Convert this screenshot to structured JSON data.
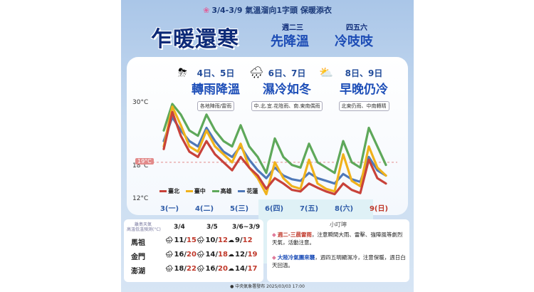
{
  "header": {
    "topline": "3/4-3/9 氣溫溜向1字頭 保暖添衣",
    "title": "乍暖還寒",
    "sub1_small": "週二三",
    "sub1": "先降溫",
    "sub2_small": "四五六",
    "sub2": "冷吱吱"
  },
  "phases": [
    {
      "date": "4日、5日",
      "phrase": "轉雨降溫",
      "tag": "各地陣雨/雷雨",
      "icon": "thunderstorm-icon"
    },
    {
      "date": "6日、7日",
      "phrase": "濕冷如冬",
      "tag": "中.北.宜.花陰雨、南.東南偶雨",
      "icon": "rain-cloud-icon"
    },
    {
      "date": "8日、9日",
      "phrase": "早晚仍冷",
      "tag": "北東仍雨、中南轉晴",
      "icon": "partly-sunny-icon"
    }
  ],
  "chart_data": {
    "type": "line",
    "y_ticks": [
      "30°C",
      "18°C",
      "12°C"
    ],
    "ylim": [
      12,
      30
    ],
    "reference_line": {
      "value": 19,
      "label": "19°C"
    },
    "categories": [
      "3(一)",
      "4(二)",
      "5(三)",
      "6(四)",
      "7(五)",
      "8(六)",
      "9(日)"
    ],
    "x": [
      3,
      3.25,
      3.5,
      3.75,
      4,
      4.25,
      4.5,
      4.75,
      5,
      5.25,
      5.5,
      5.75,
      6,
      6.25,
      6.5,
      6.75,
      7,
      7.25,
      7.5,
      7.75,
      8,
      8.25,
      8.5,
      8.75,
      9,
      9.25,
      9.5
    ],
    "series": [
      {
        "name": "臺北",
        "color": "#c8423a",
        "values": [
          21.5,
          28.5,
          24,
          21,
          20,
          23,
          20.5,
          19,
          17.5,
          20,
          18,
          16.5,
          14,
          16,
          15,
          13.8,
          13.5,
          15,
          14.2,
          13.5,
          13,
          15,
          13.8,
          13.2,
          19.5,
          16,
          15
        ]
      },
      {
        "name": "臺中",
        "color": "#f0b21c",
        "values": [
          22,
          29.5,
          26,
          22,
          21,
          25,
          22,
          20.5,
          19,
          22.5,
          18,
          16,
          13,
          19,
          16,
          14.5,
          14,
          19.5,
          15,
          14,
          13.5,
          20.5,
          15.5,
          14.5,
          22,
          18,
          16.5
        ]
      },
      {
        "name": "高雄",
        "color": "#5ea85a",
        "values": [
          25,
          30,
          28,
          25,
          24,
          28,
          25,
          23,
          22,
          26,
          22,
          20,
          17,
          23.5,
          20,
          18.5,
          18,
          22.5,
          19,
          18,
          17,
          23,
          19,
          18,
          25.5,
          22,
          18.5
        ]
      },
      {
        "name": "花蓮",
        "color": "#4f78b8",
        "values": [
          23,
          27.5,
          25,
          23,
          22,
          25.5,
          23,
          21,
          20,
          22,
          19.5,
          17.5,
          16,
          18,
          16.5,
          15.8,
          15.5,
          17,
          16,
          15.5,
          15,
          16.8,
          15.8,
          15.3,
          20,
          17.5,
          16.5
        ]
      }
    ]
  },
  "islands": {
    "header_line1": "離島天氣",
    "header_line2": "高溫低溫預測(°C)",
    "columns": [
      "3/4",
      "3/5",
      "3/6~3/9"
    ],
    "rows": [
      {
        "name": "馬祖",
        "cells": [
          {
            "low": "11",
            "high": "15"
          },
          {
            "low": "10",
            "high": "12"
          },
          {
            "low": "9",
            "high": "12"
          }
        ]
      },
      {
        "name": "金門",
        "cells": [
          {
            "low": "16",
            "high": "20"
          },
          {
            "low": "14",
            "high": "18"
          },
          {
            "low": "12",
            "high": "19"
          }
        ]
      },
      {
        "name": "澎湖",
        "cells": [
          {
            "low": "18",
            "high": "22"
          },
          {
            "low": "16",
            "high": "20"
          },
          {
            "low": "14",
            "high": "17"
          }
        ]
      }
    ]
  },
  "notes": {
    "title": "小叮嚀",
    "note1_head": "週二-三晨雷雨",
    "note1_body": "，注意瞬間大雨、雷擊、強陣風等劇烈天氣，活動注意。",
    "note2_head": "大陸冷氣團來襲",
    "note2_body": "，週四五明顯濕冷，注意保暖，週日白天回溫。"
  },
  "footer": "中央氣象署發布 2025/03/03 17:00"
}
